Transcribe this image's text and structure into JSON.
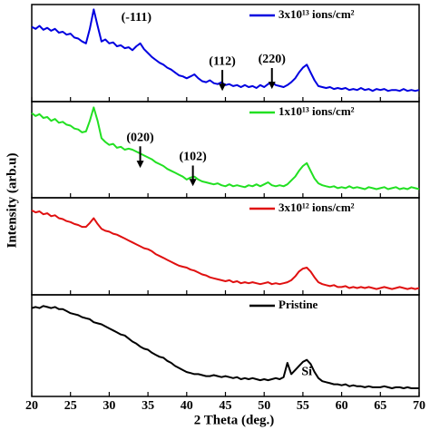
{
  "chart_data": {
    "type": "line",
    "xlabel": "2 Theta (deg.)",
    "ylabel": "Intensity (arb.u)",
    "xlim": [
      20,
      70
    ],
    "xticks": [
      20,
      25,
      30,
      35,
      40,
      45,
      50,
      55,
      60,
      65,
      70
    ],
    "x": [
      20,
      20.5,
      21,
      21.5,
      22,
      22.5,
      23,
      23.5,
      24,
      24.5,
      25,
      25.5,
      26,
      26.5,
      27,
      27.5,
      28,
      28.5,
      29,
      29.5,
      30,
      30.5,
      31,
      31.5,
      32,
      32.5,
      33,
      33.5,
      34,
      34.5,
      35,
      35.5,
      36,
      36.5,
      37,
      37.5,
      38,
      38.5,
      39,
      39.5,
      40,
      40.5,
      41,
      41.5,
      42,
      42.5,
      43,
      43.5,
      44,
      44.5,
      45,
      45.5,
      46,
      46.5,
      47,
      47.5,
      48,
      48.5,
      49,
      49.5,
      50,
      50.5,
      51,
      51.5,
      52,
      52.5,
      53,
      53.5,
      54,
      54.5,
      55,
      55.5,
      56,
      56.5,
      57,
      57.5,
      58,
      58.5,
      59,
      59.5,
      60,
      60.5,
      61,
      61.5,
      62,
      62.5,
      63,
      63.5,
      64,
      64.5,
      65,
      65.5,
      66,
      66.5,
      67,
      67.5,
      68,
      68.5,
      69,
      69.5,
      70
    ],
    "series": [
      {
        "name": "3x10¹³ ions/cm²",
        "color": "#0000e0",
        "ylim": [
          0,
          100
        ],
        "values": [
          77,
          75,
          78,
          74,
          76,
          73,
          75,
          71,
          72,
          69,
          70,
          66,
          65,
          62,
          60,
          75,
          95,
          78,
          62,
          64,
          60,
          61,
          57,
          58,
          55,
          56,
          53,
          57,
          60,
          54,
          50,
          46,
          43,
          40,
          38,
          35,
          33,
          30,
          27,
          26,
          24,
          26,
          28,
          24,
          21,
          20,
          22,
          19,
          18,
          20,
          17,
          18,
          16,
          17,
          15,
          17,
          15,
          16,
          14,
          17,
          15,
          18,
          20,
          17,
          16,
          15,
          17,
          20,
          24,
          30,
          35,
          38,
          30,
          22,
          16,
          15,
          14,
          15,
          13,
          14,
          13,
          14,
          12,
          13,
          12,
          14,
          12,
          13,
          11,
          13,
          12,
          13,
          11,
          12,
          12,
          11,
          13,
          11,
          12,
          11,
          12
        ],
        "annotations": [
          {
            "text": "(-111)",
            "x": 33.5,
            "y": 86
          },
          {
            "text": "(112)",
            "x": 44.6,
            "y": 41,
            "arrow_x": 44.6,
            "arrow_y": 11
          },
          {
            "text": "(220)",
            "x": 51,
            "y": 43,
            "arrow_x": 51,
            "arrow_y": 13
          }
        ]
      },
      {
        "name": "1x10¹³ ions/cm²",
        "color": "#22e022",
        "ylim": [
          0,
          100
        ],
        "values": [
          88,
          85,
          87,
          83,
          84,
          80,
          82,
          78,
          79,
          76,
          75,
          72,
          71,
          68,
          69,
          80,
          94,
          80,
          62,
          58,
          55,
          56,
          52,
          53,
          50,
          51,
          50,
          48,
          46,
          44,
          42,
          40,
          37,
          35,
          33,
          30,
          28,
          26,
          24,
          22,
          19,
          21,
          22,
          19,
          17,
          16,
          15,
          14,
          15,
          13,
          12,
          14,
          12,
          13,
          12,
          11,
          13,
          12,
          14,
          12,
          14,
          16,
          13,
          12,
          13,
          12,
          14,
          18,
          22,
          28,
          33,
          36,
          28,
          20,
          15,
          13,
          12,
          11,
          12,
          10,
          11,
          10,
          12,
          10,
          11,
          10,
          9,
          11,
          10,
          9,
          10,
          11,
          9,
          10,
          11,
          9,
          10,
          9,
          11,
          10,
          9
        ],
        "annotations": [
          {
            "text": "(020)",
            "x": 34,
            "y": 62,
            "arrow_x": 34,
            "arrow_y": 31
          },
          {
            "text": "(102)",
            "x": 40.8,
            "y": 42,
            "arrow_x": 40.8,
            "arrow_y": 12
          }
        ]
      },
      {
        "name": "3x10¹² ions/cm²",
        "color": "#e01010",
        "ylim": [
          0,
          100
        ],
        "values": [
          87,
          85,
          86,
          83,
          84,
          81,
          82,
          79,
          78,
          76,
          75,
          73,
          72,
          70,
          70,
          74,
          79,
          73,
          68,
          66,
          65,
          63,
          62,
          60,
          58,
          56,
          54,
          52,
          50,
          48,
          47,
          45,
          42,
          40,
          38,
          36,
          34,
          32,
          30,
          29,
          28,
          26,
          25,
          23,
          21,
          20,
          18,
          17,
          16,
          15,
          14,
          15,
          13,
          14,
          12,
          13,
          12,
          13,
          12,
          11,
          12,
          13,
          11,
          12,
          11,
          12,
          13,
          15,
          19,
          24,
          27,
          28,
          24,
          18,
          13,
          11,
          10,
          9,
          10,
          8,
          8,
          9,
          7,
          8,
          7,
          8,
          7,
          8,
          7,
          6,
          7,
          8,
          7,
          6,
          7,
          8,
          7,
          6,
          7,
          6,
          7
        ]
      },
      {
        "name": "Pristine",
        "color": "#000000",
        "ylim": [
          0,
          100
        ],
        "values": [
          87,
          88,
          87,
          89,
          88,
          87,
          88,
          86,
          86,
          84,
          82,
          81,
          80,
          78,
          77,
          76,
          73,
          72,
          71,
          69,
          67,
          65,
          63,
          61,
          60,
          57,
          54,
          52,
          49,
          47,
          46,
          43,
          41,
          39,
          38,
          35,
          33,
          30,
          28,
          26,
          24,
          23,
          22,
          22,
          21,
          20,
          20,
          21,
          20,
          19,
          20,
          19,
          18,
          19,
          17,
          18,
          17,
          18,
          17,
          16,
          17,
          16,
          17,
          18,
          17,
          19,
          33,
          22,
          26,
          30,
          34,
          36,
          32,
          24,
          18,
          15,
          14,
          13,
          12,
          12,
          11,
          12,
          10,
          11,
          10,
          10,
          9,
          10,
          9,
          9,
          9,
          10,
          9,
          8,
          9,
          9,
          8,
          9,
          8,
          8,
          8
        ],
        "annotations": [
          {
            "text": "Si",
            "x": 55.5,
            "y": 24
          }
        ]
      }
    ]
  }
}
